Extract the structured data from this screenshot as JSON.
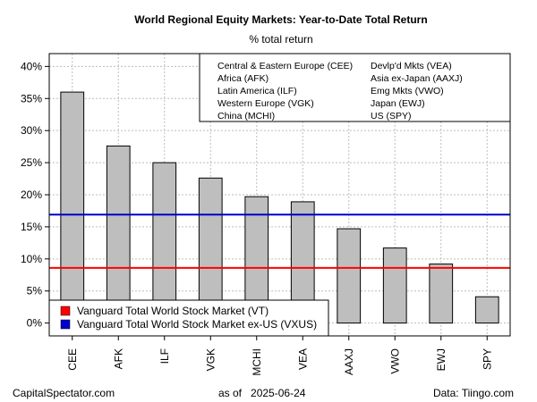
{
  "chart_data": {
    "type": "bar",
    "title": "World Regional Equity Markets: Year-to-Date Total Return",
    "subtitle": "% total return",
    "categories": [
      "CEE",
      "AFK",
      "ILF",
      "VGK",
      "MCHI",
      "VEA",
      "AAXJ",
      "VWO",
      "EWJ",
      "SPY"
    ],
    "values": [
      36.0,
      27.6,
      25.0,
      22.6,
      19.7,
      18.9,
      14.7,
      11.7,
      9.2,
      4.1
    ],
    "ylim": [
      -2,
      42
    ],
    "yticks": [
      0,
      5,
      10,
      15,
      20,
      25,
      30,
      35,
      40
    ],
    "ytick_labels": [
      "0%",
      "5%",
      "10%",
      "15%",
      "20%",
      "25%",
      "30%",
      "35%",
      "40%"
    ],
    "grid": true,
    "bar_color": "#bebebe",
    "reference_lines": [
      {
        "name": "Vanguard Total World Stock Market (VT)",
        "value": 8.6,
        "color": "#ff0000"
      },
      {
        "name": "Vanguard Total World Stock Market ex-US (VXUS)",
        "value": 16.9,
        "color": "#0000cd"
      }
    ],
    "legend_position": "bottom-left",
    "category_legend": [
      [
        "Central & Eastern Europe (CEE)",
        "Devlp'd Mkts (VEA)"
      ],
      [
        "Africa (AFK)",
        "Asia ex-Japan (AAXJ)"
      ],
      [
        "Latin America (ILF)",
        "Emg Mkts (VWO)"
      ],
      [
        "Western Europe (VGK)",
        "Japan (EWJ)"
      ],
      [
        "China (MCHI)",
        "US (SPY)"
      ]
    ],
    "category_legend_position": "top-right"
  },
  "footer": {
    "source_left": "CapitalSpectator.com",
    "as_of_label": "as of",
    "as_of_date": "2025-06-24",
    "data_credit": "Data: Tiingo.com"
  }
}
